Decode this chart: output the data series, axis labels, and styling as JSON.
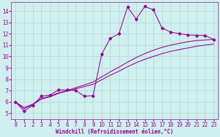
{
  "xlabel": "Windchill (Refroidissement éolien,°C)",
  "bg_color": "#cff0ee",
  "line_color": "#990099",
  "xlim": [
    -0.5,
    23.5
  ],
  "ylim": [
    4.5,
    14.8
  ],
  "yticks": [
    5,
    6,
    7,
    8,
    9,
    10,
    11,
    12,
    13,
    14
  ],
  "xticks": [
    0,
    1,
    2,
    3,
    4,
    5,
    6,
    7,
    8,
    9,
    10,
    11,
    12,
    13,
    14,
    15,
    16,
    17,
    18,
    19,
    20,
    21,
    22,
    23
  ],
  "jagged_x": [
    0,
    1,
    2,
    3,
    4,
    5,
    6,
    7,
    8,
    9,
    10,
    11,
    12,
    13,
    14,
    15,
    16,
    17,
    18,
    19,
    20,
    21,
    22,
    23
  ],
  "jagged_y": [
    6.0,
    5.2,
    5.7,
    6.5,
    6.6,
    7.05,
    7.05,
    7.0,
    6.5,
    6.55,
    10.2,
    11.6,
    12.0,
    14.35,
    13.3,
    14.4,
    14.1,
    12.5,
    12.15,
    12.0,
    11.9,
    11.85,
    11.85,
    11.5
  ],
  "smooth1_x": [
    0,
    1,
    2,
    3,
    4,
    5,
    6,
    7,
    8,
    9,
    10,
    11,
    12,
    13,
    14,
    15,
    16,
    17,
    18,
    19,
    20,
    21,
    22,
    23
  ],
  "smooth1_y": [
    6.0,
    5.5,
    5.8,
    6.3,
    6.5,
    6.8,
    7.0,
    7.25,
    7.5,
    7.75,
    8.2,
    8.65,
    9.05,
    9.5,
    9.9,
    10.25,
    10.55,
    10.8,
    11.0,
    11.15,
    11.3,
    11.4,
    11.45,
    11.5
  ],
  "smooth2_x": [
    0,
    1,
    2,
    3,
    4,
    5,
    6,
    7,
    8,
    9,
    10,
    11,
    12,
    13,
    14,
    15,
    16,
    17,
    18,
    19,
    20,
    21,
    22,
    23
  ],
  "smooth2_y": [
    6.0,
    5.4,
    5.75,
    6.25,
    6.45,
    6.75,
    6.95,
    7.15,
    7.35,
    7.55,
    7.95,
    8.35,
    8.7,
    9.1,
    9.45,
    9.75,
    10.0,
    10.25,
    10.45,
    10.6,
    10.75,
    10.9,
    11.0,
    11.1
  ],
  "grid_color": "#aacccc",
  "xlabel_fontsize": 5.5,
  "tick_fontsize": 5.5
}
